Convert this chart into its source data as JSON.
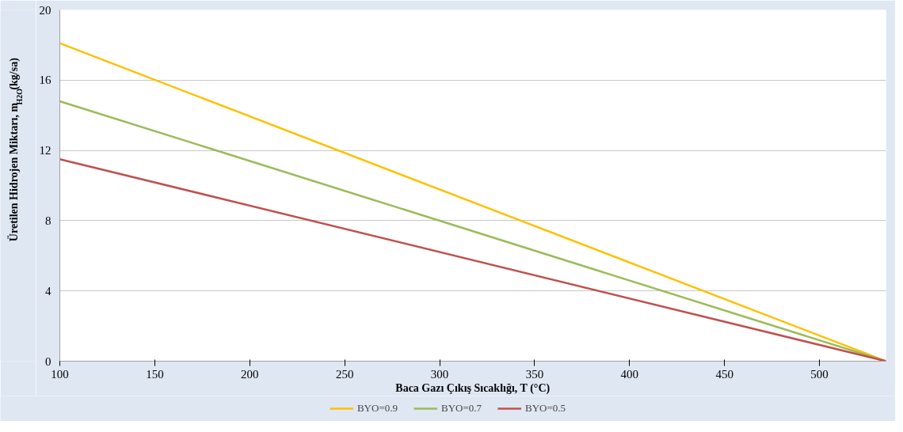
{
  "chart_data": {
    "type": "line",
    "xlabel": "Baca Gazı Çıkış Sıcaklığı, T (°C)",
    "ylabel": "Üretilen Hidrojen Miktarı, m$_{H2O}$(kg/sa)",
    "x": [
      100,
      535
    ],
    "series": [
      {
        "name": "BYO=0.9",
        "color": "#ffc000",
        "values": [
          18.1,
          0
        ]
      },
      {
        "name": "BYO=0.7",
        "color": "#9bbb59",
        "values": [
          14.8,
          0
        ]
      },
      {
        "name": "BYO=0.5",
        "color": "#c0504d",
        "values": [
          11.5,
          0
        ]
      }
    ],
    "xlim": [
      100,
      535
    ],
    "ylim": [
      0,
      20
    ],
    "xticks": [
      100,
      150,
      200,
      250,
      300,
      350,
      400,
      450,
      500
    ],
    "yticks": [
      0,
      4,
      8,
      12,
      16,
      20
    ],
    "grid": "y",
    "legend": "bottom",
    "marker": "none",
    "line_style": "solid"
  }
}
